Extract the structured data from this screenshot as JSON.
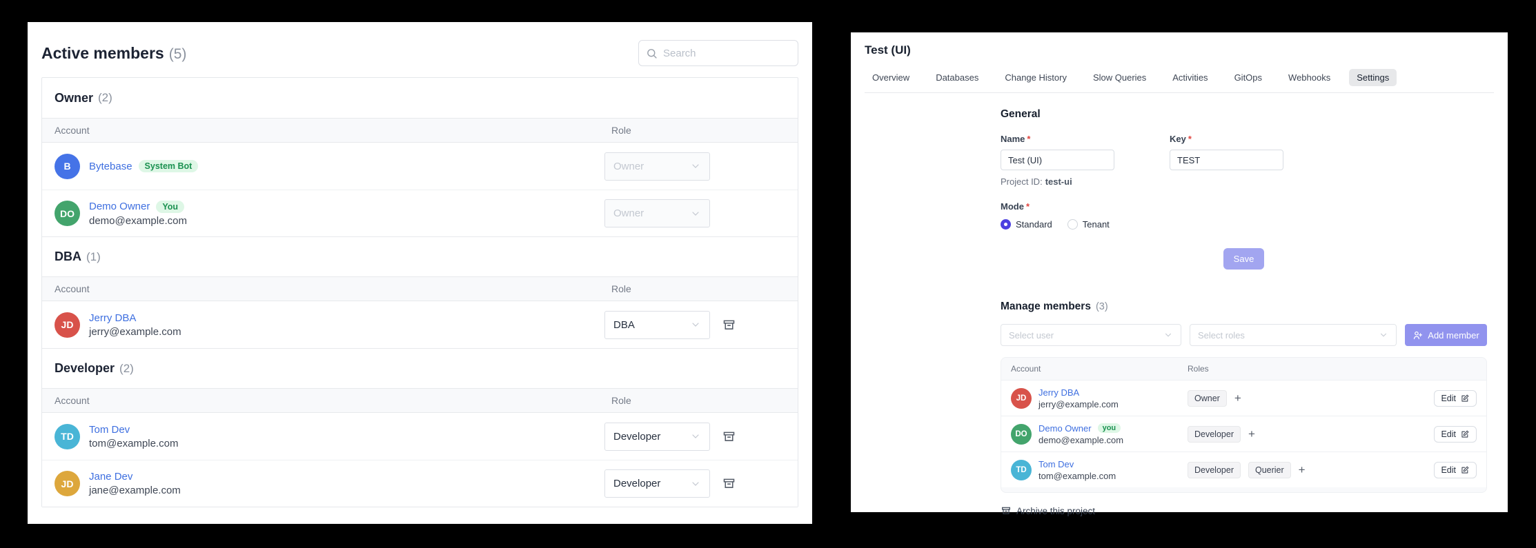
{
  "colors": {
    "link": "#3e6fe0",
    "accent_radio": "#4c40e0",
    "save_button_bg": "#a2a5f0",
    "add_member_button_bg": "#9193ee",
    "badge_bg": "#def7e6",
    "badge_text": "#1a9150",
    "active_tab_bg": "#e7e8ea"
  },
  "left_panel": {
    "title": "Active members",
    "count": "(5)",
    "search_placeholder": "Search",
    "columns": {
      "account": "Account",
      "role": "Role"
    },
    "groups": [
      {
        "name": "Owner",
        "count": "(2)",
        "members": [
          {
            "initials": "B",
            "avatar_color": "#4573e7",
            "name": "Bytebase",
            "badge": "System Bot",
            "email": "",
            "role": "Owner",
            "role_disabled": true,
            "removable": false
          },
          {
            "initials": "DO",
            "avatar_color": "#43a46c",
            "name": "Demo Owner",
            "badge": "You",
            "email": "demo@example.com",
            "role": "Owner",
            "role_disabled": true,
            "removable": false
          }
        ]
      },
      {
        "name": "DBA",
        "count": "(1)",
        "members": [
          {
            "initials": "JD",
            "avatar_color": "#d8524a",
            "name": "Jerry DBA",
            "badge": "",
            "email": "jerry@example.com",
            "role": "DBA",
            "role_disabled": false,
            "removable": true
          }
        ]
      },
      {
        "name": "Developer",
        "count": "(2)",
        "members": [
          {
            "initials": "TD",
            "avatar_color": "#49b5d6",
            "name": "Tom Dev",
            "badge": "",
            "email": "tom@example.com",
            "role": "Developer",
            "role_disabled": false,
            "removable": true
          },
          {
            "initials": "JD",
            "avatar_color": "#dda73c",
            "name": "Jane Dev",
            "badge": "",
            "email": "jane@example.com",
            "role": "Developer",
            "role_disabled": false,
            "removable": true
          }
        ]
      }
    ]
  },
  "right_panel": {
    "title": "Test (UI)",
    "tabs": [
      "Overview",
      "Databases",
      "Change History",
      "Slow Queries",
      "Activities",
      "GitOps",
      "Webhooks",
      "Settings"
    ],
    "active_tab": "Settings",
    "general": {
      "heading": "General",
      "required_marker": "*",
      "name_label": "Name",
      "name_value": "Test (UI)",
      "key_label": "Key",
      "key_value": "TEST",
      "project_id_label": "Project ID:",
      "project_id_value": "test-ui",
      "mode_label": "Mode",
      "mode_options": [
        "Standard",
        "Tenant"
      ],
      "mode_selected": "Standard",
      "save_label": "Save"
    },
    "members": {
      "heading": "Manage members",
      "count": "(3)",
      "select_user_placeholder": "Select user",
      "select_roles_placeholder": "Select roles",
      "add_member_label": "Add member",
      "columns": {
        "account": "Account",
        "roles": "Roles"
      },
      "edit_label": "Edit",
      "rows": [
        {
          "initials": "JD",
          "avatar_color": "#d8524a",
          "name": "Jerry DBA",
          "badge": "",
          "email": "jerry@example.com",
          "roles": [
            "Owner"
          ]
        },
        {
          "initials": "DO",
          "avatar_color": "#43a46c",
          "name": "Demo Owner",
          "badge": "you",
          "email": "demo@example.com",
          "roles": [
            "Developer"
          ]
        },
        {
          "initials": "TD",
          "avatar_color": "#49b5d6",
          "name": "Tom Dev",
          "badge": "",
          "email": "tom@example.com",
          "roles": [
            "Developer",
            "Querier"
          ]
        }
      ]
    },
    "archive_label": "Archive this project"
  }
}
